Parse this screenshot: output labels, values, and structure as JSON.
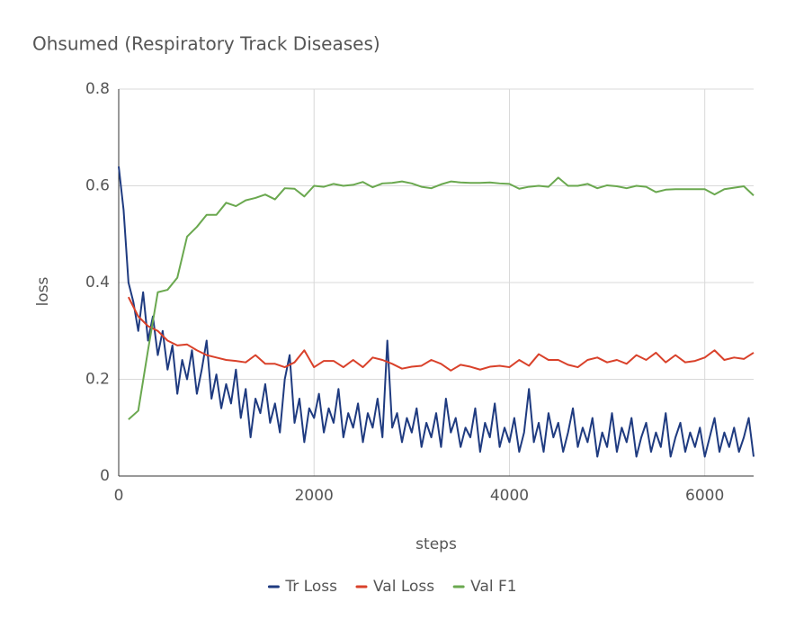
{
  "chart_data": {
    "type": "line",
    "title": "Ohsumed (Respiratory Track Diseases)",
    "x_label": "steps",
    "y_label": "loss",
    "xlim": [
      0,
      6500
    ],
    "ylim": [
      0,
      0.8
    ],
    "xticks": [
      0,
      2000,
      4000,
      6000
    ],
    "yticks": [
      0,
      0.2,
      0.4,
      0.6,
      0.8
    ],
    "grid": true,
    "legend": "bottom",
    "series": [
      {
        "name": "Tr Loss",
        "color": "#1f3b80",
        "x": [
          0,
          50,
          100,
          150,
          200,
          250,
          300,
          350,
          400,
          450,
          500,
          550,
          600,
          650,
          700,
          750,
          800,
          850,
          900,
          950,
          1000,
          1050,
          1100,
          1150,
          1200,
          1250,
          1300,
          1350,
          1400,
          1450,
          1500,
          1550,
          1600,
          1650,
          1700,
          1750,
          1800,
          1850,
          1900,
          1950,
          2000,
          2050,
          2100,
          2150,
          2200,
          2250,
          2300,
          2350,
          2400,
          2450,
          2500,
          2550,
          2600,
          2650,
          2700,
          2750,
          2800,
          2850,
          2900,
          2950,
          3000,
          3050,
          3100,
          3150,
          3200,
          3250,
          3300,
          3350,
          3400,
          3450,
          3500,
          3550,
          3600,
          3650,
          3700,
          3750,
          3800,
          3850,
          3900,
          3950,
          4000,
          4050,
          4100,
          4150,
          4200,
          4250,
          4300,
          4350,
          4400,
          4450,
          4500,
          4550,
          4600,
          4650,
          4700,
          4750,
          4800,
          4850,
          4900,
          4950,
          5000,
          5050,
          5100,
          5150,
          5200,
          5250,
          5300,
          5350,
          5400,
          5450,
          5500,
          5550,
          5600,
          5650,
          5700,
          5750,
          5800,
          5850,
          5900,
          5950,
          6000,
          6050,
          6100,
          6150,
          6200,
          6250,
          6300,
          6350,
          6400,
          6450,
          6500
        ],
        "values": [
          0.64,
          0.55,
          0.4,
          0.36,
          0.3,
          0.38,
          0.28,
          0.33,
          0.25,
          0.3,
          0.22,
          0.27,
          0.17,
          0.24,
          0.2,
          0.26,
          0.17,
          0.22,
          0.28,
          0.16,
          0.21,
          0.14,
          0.19,
          0.15,
          0.22,
          0.12,
          0.18,
          0.08,
          0.16,
          0.13,
          0.19,
          0.11,
          0.15,
          0.09,
          0.2,
          0.25,
          0.11,
          0.16,
          0.07,
          0.14,
          0.12,
          0.17,
          0.09,
          0.14,
          0.11,
          0.18,
          0.08,
          0.13,
          0.1,
          0.15,
          0.07,
          0.13,
          0.1,
          0.16,
          0.08,
          0.28,
          0.1,
          0.13,
          0.07,
          0.12,
          0.09,
          0.14,
          0.06,
          0.11,
          0.08,
          0.13,
          0.06,
          0.16,
          0.09,
          0.12,
          0.06,
          0.1,
          0.08,
          0.14,
          0.05,
          0.11,
          0.08,
          0.15,
          0.06,
          0.1,
          0.07,
          0.12,
          0.05,
          0.09,
          0.18,
          0.07,
          0.11,
          0.05,
          0.13,
          0.08,
          0.11,
          0.05,
          0.09,
          0.14,
          0.06,
          0.1,
          0.07,
          0.12,
          0.04,
          0.09,
          0.06,
          0.13,
          0.05,
          0.1,
          0.07,
          0.12,
          0.04,
          0.08,
          0.11,
          0.05,
          0.09,
          0.06,
          0.13,
          0.04,
          0.08,
          0.11,
          0.05,
          0.09,
          0.06,
          0.1,
          0.04,
          0.08,
          0.12,
          0.05,
          0.09,
          0.06,
          0.1,
          0.05,
          0.08,
          0.12,
          0.04
        ]
      },
      {
        "name": "Val Loss",
        "color": "#d9412a",
        "x": [
          100,
          200,
          300,
          400,
          500,
          600,
          700,
          800,
          900,
          1000,
          1100,
          1200,
          1300,
          1400,
          1500,
          1600,
          1700,
          1800,
          1900,
          2000,
          2100,
          2200,
          2300,
          2400,
          2500,
          2600,
          2700,
          2800,
          2900,
          3000,
          3100,
          3200,
          3300,
          3400,
          3500,
          3600,
          3700,
          3800,
          3900,
          4000,
          4100,
          4200,
          4300,
          4400,
          4500,
          4600,
          4700,
          4800,
          4900,
          5000,
          5100,
          5200,
          5300,
          5400,
          5500,
          5600,
          5700,
          5800,
          5900,
          6000,
          6100,
          6200,
          6300,
          6400,
          6500
        ],
        "values": [
          0.37,
          0.33,
          0.31,
          0.3,
          0.28,
          0.27,
          0.272,
          0.26,
          0.25,
          0.245,
          0.24,
          0.238,
          0.235,
          0.25,
          0.232,
          0.232,
          0.225,
          0.235,
          0.26,
          0.225,
          0.238,
          0.238,
          0.225,
          0.24,
          0.225,
          0.245,
          0.24,
          0.232,
          0.222,
          0.226,
          0.228,
          0.24,
          0.232,
          0.218,
          0.23,
          0.226,
          0.22,
          0.226,
          0.228,
          0.225,
          0.24,
          0.228,
          0.252,
          0.24,
          0.24,
          0.23,
          0.225,
          0.24,
          0.245,
          0.235,
          0.24,
          0.232,
          0.25,
          0.24,
          0.255,
          0.235,
          0.25,
          0.235,
          0.238,
          0.245,
          0.26,
          0.24,
          0.245,
          0.242,
          0.255
        ]
      },
      {
        "name": "Val F1",
        "color": "#6aa84f",
        "x": [
          100,
          200,
          300,
          400,
          500,
          600,
          700,
          800,
          900,
          1000,
          1100,
          1200,
          1300,
          1400,
          1500,
          1600,
          1700,
          1800,
          1900,
          2000,
          2100,
          2200,
          2300,
          2400,
          2500,
          2600,
          2700,
          2800,
          2900,
          3000,
          3100,
          3200,
          3300,
          3400,
          3500,
          3600,
          3700,
          3800,
          3900,
          4000,
          4100,
          4200,
          4300,
          4400,
          4500,
          4600,
          4700,
          4800,
          4900,
          5000,
          5100,
          5200,
          5300,
          5400,
          5500,
          5600,
          5700,
          5800,
          5900,
          6000,
          6100,
          6200,
          6300,
          6400,
          6500
        ],
        "values": [
          0.117,
          0.135,
          0.26,
          0.38,
          0.385,
          0.41,
          0.495,
          0.515,
          0.54,
          0.54,
          0.565,
          0.558,
          0.57,
          0.575,
          0.582,
          0.572,
          0.595,
          0.594,
          0.578,
          0.6,
          0.598,
          0.604,
          0.6,
          0.602,
          0.608,
          0.597,
          0.605,
          0.606,
          0.609,
          0.605,
          0.598,
          0.595,
          0.603,
          0.609,
          0.607,
          0.606,
          0.606,
          0.607,
          0.605,
          0.604,
          0.594,
          0.598,
          0.6,
          0.598,
          0.617,
          0.6,
          0.6,
          0.604,
          0.595,
          0.601,
          0.599,
          0.595,
          0.6,
          0.598,
          0.587,
          0.592,
          0.593,
          0.593,
          0.593,
          0.593,
          0.582,
          0.593,
          0.596,
          0.599,
          0.58
        ]
      }
    ]
  }
}
